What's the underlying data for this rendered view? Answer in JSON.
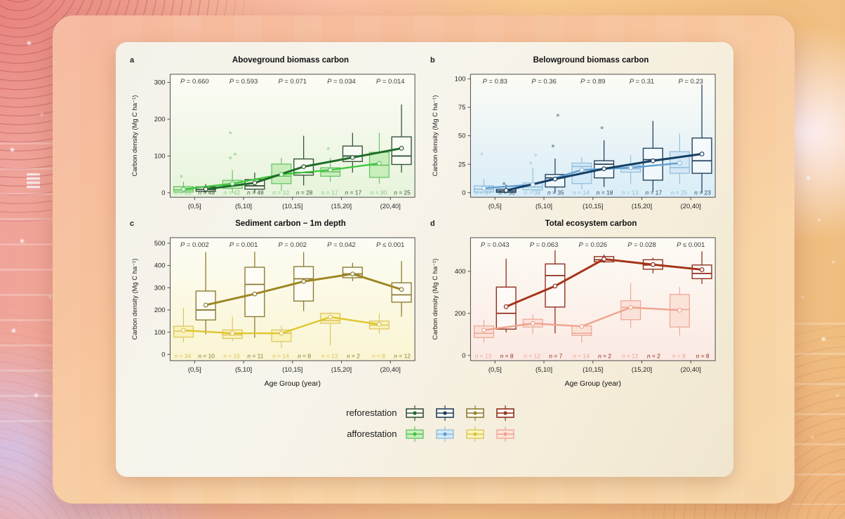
{
  "legend": {
    "rows": [
      {
        "key": "reforestation",
        "label": "reforestation"
      },
      {
        "key": "afforestation",
        "label": "afforestation"
      }
    ]
  },
  "chart_data": [
    {
      "letter": "a",
      "title": "Aboveground biomass carbon",
      "type": "boxplot",
      "ylabel": "Carbon density (Mg C ha⁻¹)",
      "xlabel": null,
      "categories": [
        "(0,5]",
        "(5,10]",
        "(10,15]",
        "(15,20]",
        "(20,40]"
      ],
      "ylim": [
        -12,
        322
      ],
      "yticks": [
        0,
        100,
        200,
        300
      ],
      "p_values": [
        "= 0.660",
        "= 0.593",
        "= 0.071",
        "= 0.034",
        "= 0.014"
      ],
      "tint": "#e7f4dc",
      "series": {
        "afforestation": {
          "fill": "#c9eebb",
          "stroke": "#62c162",
          "line": "#3ec83e",
          "label": "#82d182",
          "n": [
            33,
            42,
            10,
            17,
            30
          ],
          "boxes": [
            {
              "lo": 0,
              "q1": 2,
              "med": 8,
              "q3": 17,
              "hi": 30,
              "mean": 10,
              "out": [
                45
              ]
            },
            {
              "lo": 0,
              "q1": 12,
              "med": 20,
              "q3": 34,
              "hi": 62,
              "mean": 25,
              "out": [
                95,
                105,
                163
              ]
            },
            {
              "lo": 5,
              "q1": 25,
              "med": 45,
              "q3": 78,
              "hi": 95,
              "mean": 50,
              "out": []
            },
            {
              "lo": 30,
              "q1": 45,
              "med": 57,
              "q3": 68,
              "hi": 95,
              "mean": 62,
              "out": [
                120
              ]
            },
            {
              "lo": 25,
              "q1": 42,
              "med": 75,
              "q3": 110,
              "hi": 163,
              "mean": 80,
              "out": []
            }
          ]
        },
        "reforestation": {
          "fill": "rgba(255,255,255,0.55)",
          "stroke": "#38543a",
          "line": "#1f6b27",
          "label": "#3c5a3e",
          "n": [
            49,
            48,
            28,
            17,
            25
          ],
          "boxes": [
            {
              "lo": 0,
              "q1": 4,
              "med": 9,
              "q3": 16,
              "hi": 24,
              "mean": 10,
              "out": []
            },
            {
              "lo": 0,
              "q1": 10,
              "med": 19,
              "q3": 36,
              "hi": 55,
              "mean": 27,
              "out": []
            },
            {
              "lo": 20,
              "q1": 48,
              "med": 55,
              "q3": 92,
              "hi": 155,
              "mean": 71,
              "out": []
            },
            {
              "lo": 55,
              "q1": 85,
              "med": 100,
              "q3": 127,
              "hi": 163,
              "mean": 96,
              "out": []
            },
            {
              "lo": 55,
              "q1": 77,
              "med": 100,
              "q3": 152,
              "hi": 240,
              "mean": 121,
              "out": []
            }
          ]
        }
      }
    },
    {
      "letter": "b",
      "title": "Belowground biomass carbon",
      "type": "boxplot",
      "ylabel": "Carbon density (Mg C ha⁻¹)",
      "xlabel": null,
      "categories": [
        "(0,5]",
        "(5,10]",
        "(10,15]",
        "(15,20]",
        "(20,40]"
      ],
      "ylim": [
        -4,
        104
      ],
      "yticks": [
        0,
        25,
        50,
        75,
        100
      ],
      "p_values": [
        "= 0.83",
        "= 0.36",
        "= 0.89",
        "= 0.31",
        "= 0.23"
      ],
      "tint": "#d9edf8",
      "series": {
        "afforestation": {
          "fill": "#d3e9f7",
          "stroke": "#8fbcd9",
          "line": "#5f9fd4",
          "label": "#92bcd8",
          "n": [
            37,
            38,
            14,
            13,
            25
          ],
          "boxes": [
            {
              "lo": 0,
              "q1": 0.5,
              "med": 3,
              "q3": 6,
              "hi": 12,
              "mean": 4,
              "out": [
                34
              ]
            },
            {
              "lo": 0,
              "q1": 2.5,
              "med": 5,
              "q3": 8.5,
              "hi": 22,
              "mean": 7,
              "out": [
                26,
                33
              ]
            },
            {
              "lo": 3,
              "q1": 8,
              "med": 23,
              "q3": 26,
              "hi": 31,
              "mean": 20,
              "out": []
            },
            {
              "lo": 8,
              "q1": 18,
              "med": 21,
              "q3": 24,
              "hi": 33,
              "mean": 22,
              "out": []
            },
            {
              "lo": 8,
              "q1": 17,
              "med": 22,
              "q3": 36,
              "hi": 52,
              "mean": 26,
              "out": []
            }
          ]
        },
        "reforestation": {
          "fill": "rgba(255,255,255,0.55)",
          "stroke": "#24415e",
          "line": "#143f63",
          "label": "#2c4b66",
          "n": [
            36,
            35,
            18,
            17,
            23
          ],
          "boxes": [
            {
              "lo": 0,
              "q1": 0.3,
              "med": 1.5,
              "q3": 3,
              "hi": 7,
              "mean": 2,
              "out": [
                8
              ]
            },
            {
              "lo": 0,
              "q1": 5,
              "med": 13,
              "q3": 16,
              "hi": 30,
              "mean": 12,
              "out": [
                41,
                68
              ]
            },
            {
              "lo": 5,
              "q1": 13,
              "med": 25,
              "q3": 28,
              "hi": 46,
              "mean": 21,
              "out": [
                57
              ]
            },
            {
              "lo": 1,
              "q1": 11,
              "med": 29,
              "q3": 39,
              "hi": 63,
              "mean": 28,
              "out": []
            },
            {
              "lo": 0,
              "q1": 17,
              "med": 28,
              "q3": 48,
              "hi": 95,
              "mean": 34,
              "out": []
            }
          ]
        }
      }
    },
    {
      "letter": "c",
      "title": "Sediment carbon − 1m depth",
      "type": "boxplot",
      "ylabel": "Carbon density (Mg C ha⁻¹)",
      "xlabel": "Age Group (year)",
      "categories": [
        "(0,5]",
        "(5,10]",
        "(10,15]",
        "(15,20]",
        "(20,40]"
      ],
      "ylim": [
        -28,
        525
      ],
      "yticks": [
        0,
        100,
        200,
        300,
        400,
        500
      ],
      "p_values": [
        "= 0.002",
        "= 0.001",
        "= 0.002",
        "= 0.042",
        "≤ 0.001"
      ],
      "tint": "#faf5d2",
      "series": {
        "afforestation": {
          "fill": "#faf3bd",
          "stroke": "#d9c356",
          "line": "#dfc52e",
          "label": "#d9c356",
          "n": [
            34,
            15,
            14,
            13,
            8
          ],
          "boxes": [
            {
              "lo": 55,
              "q1": 78,
              "med": 105,
              "q3": 127,
              "hi": 210,
              "mean": 108,
              "out": []
            },
            {
              "lo": 58,
              "q1": 72,
              "med": 88,
              "q3": 110,
              "hi": 170,
              "mean": 95,
              "out": []
            },
            {
              "lo": 28,
              "q1": 58,
              "med": 95,
              "q3": 110,
              "hi": 128,
              "mean": 95,
              "out": []
            },
            {
              "lo": 40,
              "q1": 140,
              "med": 152,
              "q3": 185,
              "hi": 190,
              "mean": 168,
              "out": []
            },
            {
              "lo": 95,
              "q1": 115,
              "med": 132,
              "q3": 150,
              "hi": 185,
              "mean": 135,
              "out": []
            }
          ]
        },
        "reforestation": {
          "fill": "rgba(255,255,255,0.55)",
          "stroke": "#8c7b33",
          "line": "#9d8623",
          "label": "#8c7b33",
          "n": [
            10,
            11,
            8,
            2,
            12
          ],
          "boxes": [
            {
              "lo": 90,
              "q1": 155,
              "med": 200,
              "q3": 285,
              "hi": 460,
              "mean": 222,
              "out": []
            },
            {
              "lo": 75,
              "q1": 170,
              "med": 315,
              "q3": 392,
              "hi": 462,
              "mean": 272,
              "out": []
            },
            {
              "lo": 195,
              "q1": 240,
              "med": 340,
              "q3": 395,
              "hi": 460,
              "mean": 328,
              "out": []
            },
            {
              "lo": 330,
              "q1": 345,
              "med": 362,
              "q3": 392,
              "hi": 412,
              "mean": 362,
              "out": []
            },
            {
              "lo": 170,
              "q1": 235,
              "med": 268,
              "q3": 322,
              "hi": 420,
              "mean": 292,
              "out": []
            }
          ]
        }
      }
    },
    {
      "letter": "d",
      "title": "Total ecosystem carbon",
      "type": "boxplot",
      "ylabel": "Carbon density (Mg C ha⁻¹)",
      "xlabel": "Age Group (year)",
      "categories": [
        "(0,5]",
        "(5,10]",
        "(10,15]",
        "(15,20]",
        "(20,40]"
      ],
      "ylim": [
        -25,
        560
      ],
      "yticks": [
        0,
        200,
        400
      ],
      "p_values": [
        "= 0.043",
        "= 0.063",
        "= 0.026",
        "= 0.028",
        "≤ 0.001"
      ],
      "tint": "#fbe9e3",
      "series": {
        "afforestation": {
          "fill": "#fbe2d8",
          "stroke": "#eca493",
          "line": "#f0a28c",
          "label": "#eca493",
          "n": [
            13,
            12,
            14,
            12,
            8
          ],
          "boxes": [
            {
              "lo": 60,
              "q1": 85,
              "med": 105,
              "q3": 140,
              "hi": 170,
              "mean": 120,
              "out": []
            },
            {
              "lo": 100,
              "q1": 135,
              "med": 150,
              "q3": 172,
              "hi": 195,
              "mean": 152,
              "out": []
            },
            {
              "lo": 60,
              "q1": 95,
              "med": 105,
              "q3": 140,
              "hi": 150,
              "mean": 138,
              "out": []
            },
            {
              "lo": 130,
              "q1": 170,
              "med": 228,
              "q3": 260,
              "hi": 345,
              "mean": 228,
              "out": []
            },
            {
              "lo": 95,
              "q1": 135,
              "med": 218,
              "q3": 290,
              "hi": 325,
              "mean": 215,
              "out": []
            }
          ]
        },
        "reforestation": {
          "fill": "rgba(255,255,255,0.55)",
          "stroke": "#8e2f1c",
          "line": "#a43418",
          "label": "#8e2f1c",
          "n": [
            8,
            7,
            2,
            2,
            8
          ],
          "boxes": [
            {
              "lo": 110,
              "q1": 125,
              "med": 200,
              "q3": 325,
              "hi": 460,
              "mean": 232,
              "out": []
            },
            {
              "lo": 105,
              "q1": 230,
              "med": 380,
              "q3": 435,
              "hi": 500,
              "mean": 330,
              "out": []
            },
            {
              "lo": 440,
              "q1": 445,
              "med": 455,
              "q3": 470,
              "hi": 480,
              "mean": 458,
              "out": []
            },
            {
              "lo": 390,
              "q1": 410,
              "med": 430,
              "q3": 455,
              "hi": 465,
              "mean": 432,
              "out": []
            },
            {
              "lo": 340,
              "q1": 365,
              "med": 390,
              "q3": 430,
              "hi": 495,
              "mean": 408,
              "out": []
            }
          ]
        }
      }
    }
  ]
}
